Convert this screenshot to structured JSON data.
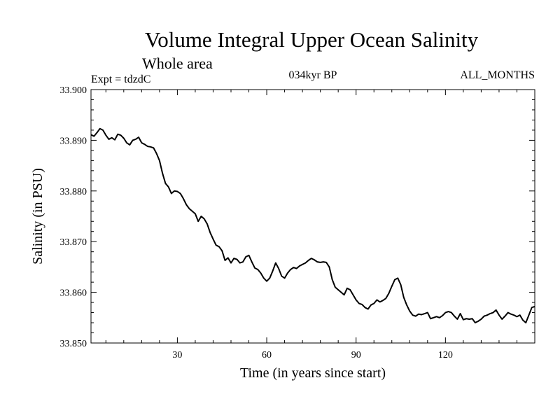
{
  "chart_data": {
    "type": "line",
    "title": "Volume Integral Upper Ocean Salinity",
    "subtitle": "Whole area",
    "experiment": "Expt = tdzdC",
    "period": "034kyr BP",
    "months": "ALL_MONTHS",
    "xlabel": "Time (in years since start)",
    "ylabel": "Salinity (in PSU)",
    "xlim": [
      1,
      150
    ],
    "ylim": [
      33.85,
      33.9
    ],
    "xticks": [
      30,
      60,
      90,
      120
    ],
    "xtick_labels": [
      "30",
      "60",
      "90",
      "120"
    ],
    "yticks": [
      33.85,
      33.86,
      33.87,
      33.88,
      33.89,
      33.9
    ],
    "ytick_labels": [
      "33.850",
      "33.860",
      "33.870",
      "33.880",
      "33.890",
      "33.900"
    ],
    "series": [
      {
        "name": "salinity",
        "x": [
          1,
          2,
          3,
          4,
          5,
          6,
          7,
          8,
          9,
          10,
          11,
          12,
          13,
          14,
          15,
          16,
          17,
          18,
          19,
          20,
          21,
          22,
          23,
          24,
          25,
          26,
          27,
          28,
          29,
          30,
          31,
          32,
          33,
          34,
          35,
          36,
          37,
          38,
          39,
          40,
          41,
          42,
          43,
          44,
          45,
          46,
          47,
          48,
          49,
          50,
          51,
          52,
          53,
          54,
          55,
          56,
          57,
          58,
          59,
          60,
          61,
          62,
          63,
          64,
          65,
          66,
          67,
          68,
          69,
          70,
          71,
          72,
          73,
          74,
          75,
          76,
          77,
          78,
          79,
          80,
          81,
          82,
          83,
          84,
          85,
          86,
          87,
          88,
          89,
          90,
          91,
          92,
          93,
          94,
          95,
          96,
          97,
          98,
          99,
          100,
          101,
          102,
          103,
          104,
          105,
          106,
          107,
          108,
          109,
          110,
          111,
          112,
          113,
          114,
          115,
          116,
          117,
          118,
          119,
          120,
          121,
          122,
          123,
          124,
          125,
          126,
          127,
          128,
          129,
          130,
          131,
          132,
          133,
          134,
          135,
          136,
          137,
          138,
          139,
          140,
          141,
          142,
          143,
          144,
          145,
          146,
          147,
          148,
          149,
          150
        ],
        "values": [
          33.8911,
          33.8908,
          33.8915,
          33.8923,
          33.892,
          33.891,
          33.8902,
          33.8905,
          33.8901,
          33.8912,
          33.891,
          33.8904,
          33.8895,
          33.8891,
          33.89,
          33.8902,
          33.8906,
          33.8895,
          33.8892,
          33.8888,
          33.8887,
          33.8885,
          33.8874,
          33.886,
          33.8835,
          33.8815,
          33.8808,
          33.8795,
          33.88,
          33.8799,
          33.8795,
          33.8785,
          33.8773,
          33.8765,
          33.876,
          33.8755,
          33.874,
          33.875,
          33.8745,
          33.8735,
          33.8718,
          33.8705,
          33.8693,
          33.869,
          33.8682,
          33.8663,
          33.8668,
          33.8658,
          33.8667,
          33.8665,
          33.8658,
          33.866,
          33.867,
          33.8673,
          33.866,
          33.8648,
          33.8645,
          33.8638,
          33.8628,
          33.8622,
          33.8628,
          33.8642,
          33.8658,
          33.8647,
          33.8632,
          33.8628,
          33.8638,
          33.8645,
          33.8649,
          33.8647,
          33.8652,
          33.8655,
          33.8658,
          33.8663,
          33.8667,
          33.8664,
          33.866,
          33.8659,
          33.866,
          33.8659,
          33.865,
          33.8625,
          33.861,
          33.8605,
          33.86,
          33.8595,
          33.8608,
          33.8605,
          33.8595,
          33.8585,
          33.8578,
          33.8576,
          33.857,
          33.8567,
          33.8575,
          33.8578,
          33.8585,
          33.8581,
          33.8584,
          33.8588,
          33.8598,
          33.8612,
          33.8625,
          33.8628,
          33.8615,
          33.859,
          33.8575,
          33.8563,
          33.8555,
          33.8553,
          33.8557,
          33.8556,
          33.8558,
          33.856,
          33.8548,
          33.855,
          33.8552,
          33.855,
          33.8554,
          33.856,
          33.8562,
          33.856,
          33.8553,
          33.8547,
          33.8558,
          33.8546,
          33.8548,
          33.8547,
          33.8548,
          33.854,
          33.8543,
          33.8547,
          33.8553,
          33.8555,
          33.8558,
          33.856,
          33.8565,
          33.8555,
          33.8547,
          33.8553,
          33.856,
          33.8557,
          33.8555,
          33.8552,
          33.8555,
          33.8545,
          33.854,
          33.8555,
          33.857,
          33.8572
        ]
      }
    ]
  }
}
